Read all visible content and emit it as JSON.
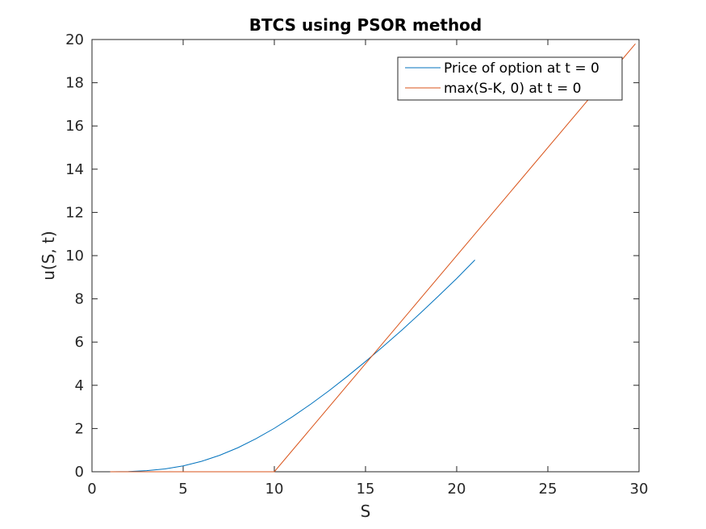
{
  "chart_data": {
    "type": "line",
    "title": "BTCS using PSOR method",
    "xlabel": "S",
    "ylabel": "u(S, t)",
    "xlim": [
      0,
      30
    ],
    "ylim": [
      0,
      20
    ],
    "xticks": [
      0,
      5,
      10,
      15,
      20,
      25,
      30
    ],
    "yticks": [
      0,
      2,
      4,
      6,
      8,
      10,
      12,
      14,
      16,
      18,
      20
    ],
    "grid": false,
    "legend_position": "top-right",
    "series": [
      {
        "name": "Price of option at t = 0",
        "color": "#0072BD",
        "x": [
          1,
          2,
          3,
          4,
          5,
          6,
          7,
          8,
          9,
          10,
          11,
          12,
          13,
          14,
          15,
          16,
          17,
          18,
          19,
          20,
          21
        ],
        "y": [
          0.0,
          0.01,
          0.05,
          0.13,
          0.27,
          0.48,
          0.76,
          1.11,
          1.53,
          2.01,
          2.55,
          3.13,
          3.75,
          4.41,
          5.1,
          5.82,
          6.56,
          7.33,
          8.13,
          8.94,
          9.8
        ]
      },
      {
        "name": "max(S-K, 0) at t = 0",
        "color": "#D95319",
        "x": [
          1,
          10,
          29.8
        ],
        "y": [
          0,
          0,
          19.8
        ]
      }
    ]
  }
}
